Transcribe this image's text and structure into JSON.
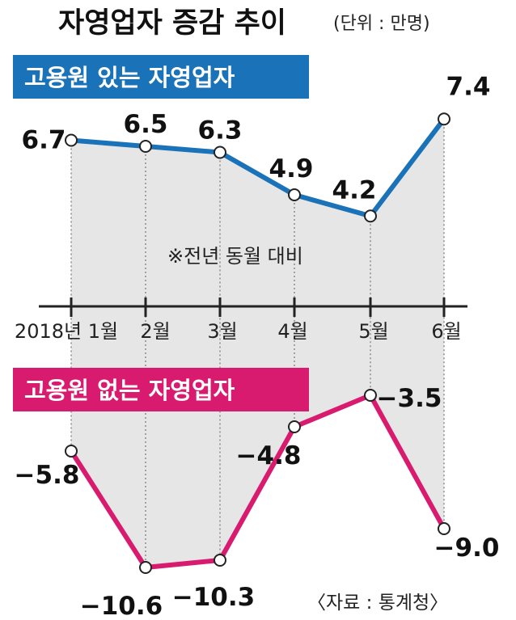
{
  "title": "자영업자 증감 추이",
  "unit": "(단위 : 만명)",
  "note": "※전년 동월 대비",
  "source": "〈자료 : 통계청〉",
  "colors": {
    "with_employees": "#1a73b8",
    "without_employees": "#d81b6e",
    "fill": "#e6e6e6",
    "axis": "#222222"
  },
  "chart_data": {
    "type": "line",
    "categories": [
      "2018년 1월",
      "2월",
      "3월",
      "4월",
      "5월",
      "6월"
    ],
    "series": [
      {
        "name": "고용원 있는 자영업자",
        "values": [
          6.7,
          6.5,
          6.3,
          4.9,
          4.2,
          7.4
        ],
        "labels": [
          "6.7",
          "6.5",
          "6.3",
          "4.9",
          "4.2",
          "7.4"
        ]
      },
      {
        "name": "고용원 없는 자영업자",
        "values": [
          -5.8,
          -10.6,
          -10.3,
          -4.8,
          -3.5,
          -9.0
        ],
        "labels": [
          "−5.8",
          "−10.6",
          "−10.3",
          "−4.8",
          "−3.5",
          "−9.0"
        ]
      }
    ],
    "ylim": [
      -11.5,
      8.5
    ],
    "grid": true
  }
}
